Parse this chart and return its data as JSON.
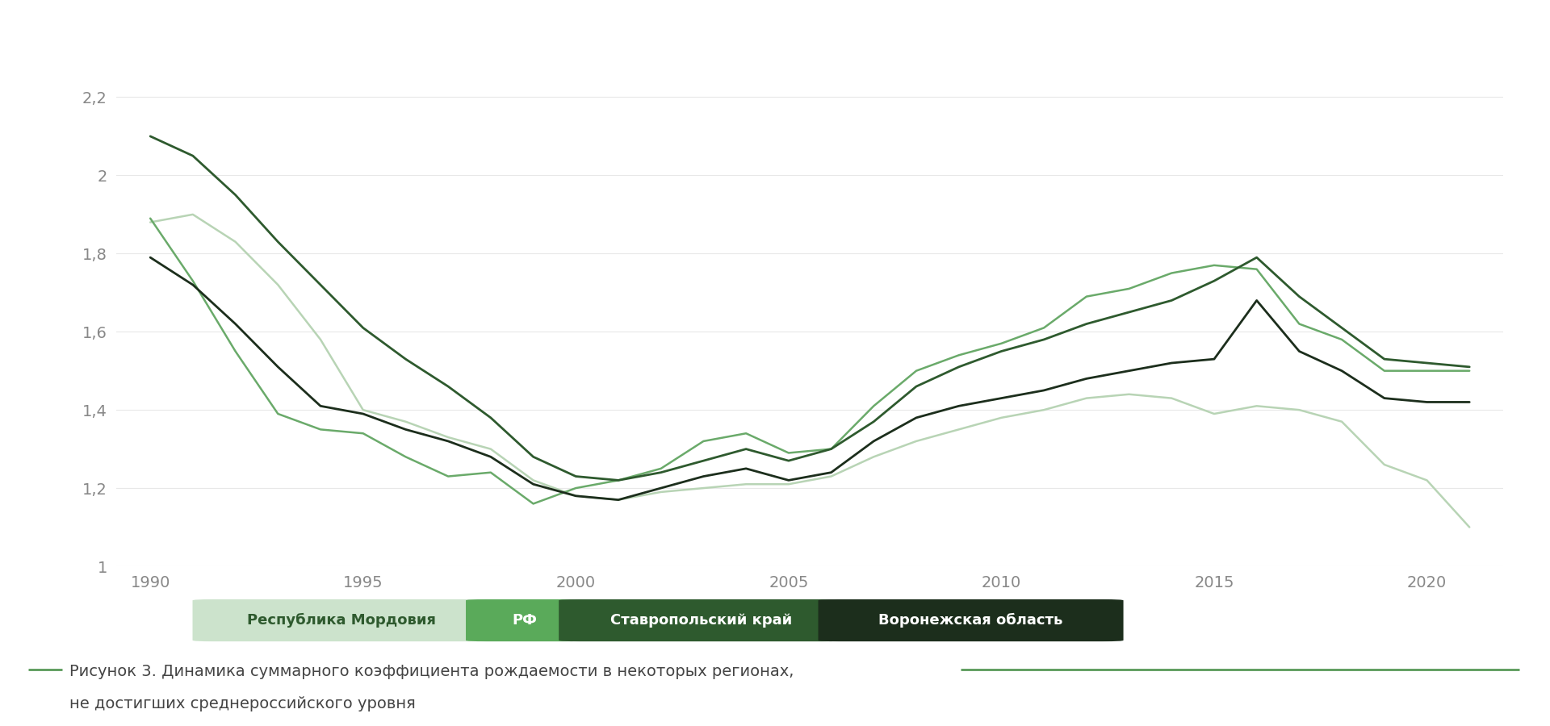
{
  "years": [
    1990,
    1991,
    1992,
    1993,
    1994,
    1995,
    1996,
    1997,
    1998,
    1999,
    2000,
    2001,
    2002,
    2003,
    2004,
    2005,
    2006,
    2007,
    2008,
    2009,
    2010,
    2011,
    2012,
    2013,
    2014,
    2015,
    2016,
    2017,
    2018,
    2019,
    2020,
    2021
  ],
  "mordovia": [
    1.88,
    1.9,
    1.83,
    1.72,
    1.58,
    1.4,
    1.37,
    1.33,
    1.3,
    1.22,
    1.18,
    1.17,
    1.19,
    1.2,
    1.21,
    1.21,
    1.23,
    1.28,
    1.32,
    1.35,
    1.38,
    1.4,
    1.43,
    1.44,
    1.43,
    1.39,
    1.41,
    1.4,
    1.37,
    1.26,
    1.22,
    1.1
  ],
  "rf": [
    1.89,
    1.73,
    1.55,
    1.39,
    1.35,
    1.34,
    1.28,
    1.23,
    1.24,
    1.16,
    1.2,
    1.22,
    1.25,
    1.32,
    1.34,
    1.29,
    1.3,
    1.41,
    1.5,
    1.54,
    1.57,
    1.61,
    1.69,
    1.71,
    1.75,
    1.77,
    1.76,
    1.62,
    1.58,
    1.5,
    1.5,
    1.5
  ],
  "stavropol": [
    2.1,
    2.05,
    1.95,
    1.83,
    1.72,
    1.61,
    1.53,
    1.46,
    1.38,
    1.28,
    1.23,
    1.22,
    1.24,
    1.27,
    1.3,
    1.27,
    1.3,
    1.37,
    1.46,
    1.51,
    1.55,
    1.58,
    1.62,
    1.65,
    1.68,
    1.73,
    1.79,
    1.69,
    1.61,
    1.53,
    1.52,
    1.51
  ],
  "voronezh": [
    1.79,
    1.72,
    1.62,
    1.51,
    1.41,
    1.39,
    1.35,
    1.32,
    1.28,
    1.21,
    1.18,
    1.17,
    1.2,
    1.23,
    1.25,
    1.22,
    1.24,
    1.32,
    1.38,
    1.41,
    1.43,
    1.45,
    1.48,
    1.5,
    1.52,
    1.53,
    1.68,
    1.55,
    1.5,
    1.43,
    1.42,
    1.42
  ],
  "colors": {
    "mordovia": "#b8d4b5",
    "rf": "#6aaa6a",
    "stavropol": "#2e5a2e",
    "voronezh": "#1c2e1c"
  },
  "line_widths": {
    "mordovia": 1.8,
    "rf": 1.8,
    "stavropol": 2.0,
    "voronezh": 2.0
  },
  "legend_labels": [
    "Республика Мордовия",
    "РФ",
    "Ставропольский край",
    "Воронежская область"
  ],
  "legend_bg_colors": [
    "#cce3cc",
    "#5aaa5a",
    "#2e5a2e",
    "#1c2e1c"
  ],
  "legend_text_colors": [
    "#2e5a2e",
    "#ffffff",
    "#ffffff",
    "#ffffff"
  ],
  "ylim": [
    1.0,
    2.3
  ],
  "yticks": [
    1.0,
    1.2,
    1.4,
    1.6,
    1.8,
    2.0,
    2.2
  ],
  "xticks": [
    1990,
    1995,
    2000,
    2005,
    2010,
    2015,
    2020
  ],
  "caption_line1": "Рисунок 3. Динамика суммарного коэффициента рождаемости в некоторых регионах,",
  "caption_line2": "не достигших среднероссийского уровня",
  "background_color": "#ffffff",
  "grid_color": "#e8e8e8",
  "caption_color": "#444444",
  "tick_color": "#888888"
}
